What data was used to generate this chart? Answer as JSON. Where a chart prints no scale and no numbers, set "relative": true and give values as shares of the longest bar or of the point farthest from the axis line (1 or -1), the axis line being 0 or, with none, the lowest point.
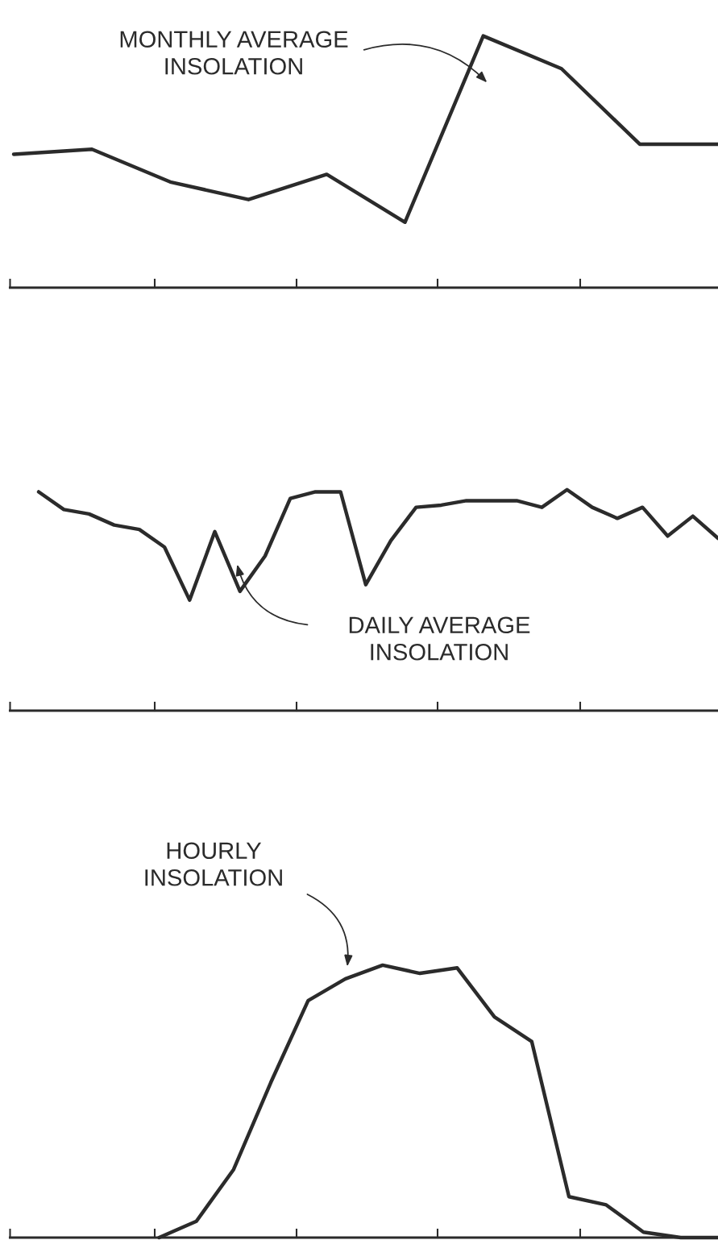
{
  "chart_data": [
    {
      "type": "line",
      "relative": true,
      "categories": [
        null,
        null,
        null,
        null,
        null,
        null,
        null,
        null,
        null,
        null
      ],
      "series": [
        {
          "color": "#2b2b2b",
          "values": [
            0.53,
            0.55,
            0.42,
            0.35,
            0.45,
            0.26,
            1.0,
            0.87,
            0.57,
            0.57
          ]
        }
      ],
      "annotations": [
        "MONTHLY AVERAGE\nINSOLATION"
      ]
    },
    {
      "type": "line",
      "relative": true,
      "categories": [
        null,
        null,
        null,
        null,
        null,
        null,
        null,
        null,
        null,
        null,
        null,
        null,
        null,
        null,
        null,
        null,
        null,
        null,
        null,
        null,
        null,
        null,
        null,
        null,
        null,
        null,
        null,
        null
      ],
      "series": [
        {
          "color": "#2b2b2b",
          "values": [
            0.99,
            0.91,
            0.89,
            0.84,
            0.82,
            0.74,
            0.5,
            0.81,
            0.54,
            0.7,
            0.96,
            0.99,
            0.99,
            0.57,
            0.77,
            0.92,
            0.93,
            0.95,
            0.95,
            0.95,
            0.92,
            1.0,
            0.92,
            0.87,
            0.92,
            0.79,
            0.88,
            0.78
          ]
        }
      ],
      "annotations": [
        "DAILY AVERAGE\nINSOLATION"
      ]
    },
    {
      "type": "line",
      "relative": true,
      "categories": [
        null,
        null,
        null,
        null,
        null,
        null,
        null,
        null,
        null,
        null,
        null,
        null,
        null,
        null,
        null,
        null,
        null,
        null,
        null,
        null
      ],
      "series": [
        {
          "color": "#2b2b2b",
          "values": [
            null,
            null,
            null,
            null,
            0,
            0.06,
            0.25,
            0.57,
            0.87,
            0.95,
            1.0,
            0.97,
            0.99,
            0.81,
            0.72,
            0.15,
            0.12,
            0.02,
            0,
            0
          ]
        }
      ],
      "annotations": [
        "HOURLY\nINSOLATION"
      ]
    }
  ]
}
